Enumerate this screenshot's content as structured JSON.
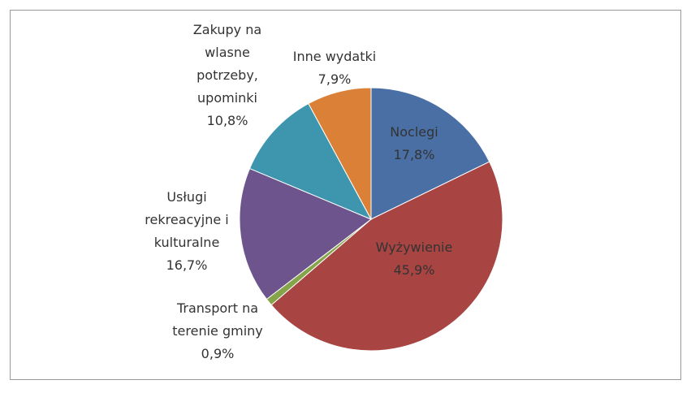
{
  "chart_data": {
    "type": "pie",
    "categories": [
      "Noclegi",
      "Wyżywienie",
      "Transport na terenie gminy",
      "Usługi rekreacyjne i kulturalne",
      "Zakupy na wlasne potrzeby, upominki",
      "Inne wydatki"
    ],
    "values": [
      17.8,
      45.9,
      0.9,
      16.7,
      10.8,
      7.9
    ],
    "value_labels": [
      "17,8%",
      "45,9%",
      "0,9%",
      "16,7%",
      "10,8%",
      "7,9%"
    ],
    "colors": [
      "#4a6fa5",
      "#a84442",
      "#86a44a",
      "#6e548d",
      "#3d96ae",
      "#da8137"
    ]
  }
}
